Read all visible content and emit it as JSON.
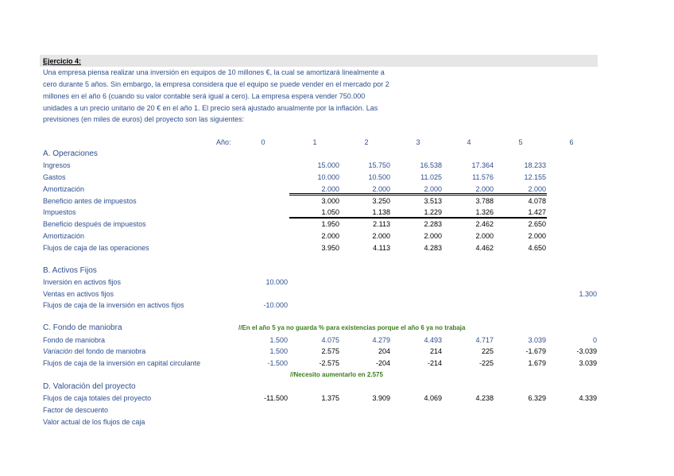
{
  "title": "Ejercicio 4:",
  "paragraph": [
    "Una empresa piensa realizar una inversión en equipos de 10 millones €, la cual se amortizará linealmente a",
    "cero durante 5 años. Sin embargo, la empresa considera que el equipo se puede vender en el mercado por 2",
    "millones en el año 6 (cuando su valor contable será igual a cero). La empresa espera vender 750.000",
    "unidades a un precio unitario de 20 € en el año 1. El precio será ajustado anualmente por la inflación. Las",
    "previsiones (en miles de euros) del proyecto son las siguientes:"
  ],
  "year_label": "Año:",
  "years": [
    "0",
    "1",
    "2",
    "3",
    "4",
    "5",
    "6"
  ],
  "sections": {
    "a": "A. Operaciones",
    "b": "B. Activos Fijos",
    "c": "C. Fondo de maniobra",
    "d": "D. Valoración del proyecto"
  },
  "notes": {
    "c": "//En el año 5 ya no guarda % para existencias porque el año 6 ya no trabaja",
    "necesito": "//Necesito aumentarlo en 2.575"
  },
  "rows": [
    {
      "label": "Ingresos",
      "values": [
        null,
        "15.000",
        "15.750",
        "16.538",
        "17.364",
        "18.233",
        null
      ]
    },
    {
      "label": "Gastos",
      "values": [
        null,
        "10.000",
        "10.500",
        "11.025",
        "11.576",
        "12.155",
        null
      ]
    },
    {
      "label": "Amortización",
      "values": [
        null,
        "2.000",
        "2.000",
        "2.000",
        "2.000",
        "2.000",
        null
      ]
    },
    {
      "label": "Beneficio antes de impuestos",
      "values": [
        null,
        "3.000",
        "3.250",
        "3.513",
        "3.788",
        "4.078",
        null
      ]
    },
    {
      "label": "Impuestos",
      "values": [
        null,
        "1.050",
        "1.138",
        "1.229",
        "1.326",
        "1.427",
        null
      ]
    },
    {
      "label": "Beneficio después de impuestos",
      "values": [
        null,
        "1.950",
        "2.113",
        "2.283",
        "2.462",
        "2.650",
        null
      ]
    },
    {
      "label": "Amortización",
      "values": [
        null,
        "2.000",
        "2.000",
        "2.000",
        "2.000",
        "2.000",
        null
      ]
    },
    {
      "label": "Flujos de caja de las operaciones",
      "values": [
        null,
        "3.950",
        "4.113",
        "4.283",
        "4.462",
        "4.650",
        null
      ]
    },
    {
      "label": "Inversión en activos fijos",
      "values": [
        "10.000",
        null,
        null,
        null,
        null,
        null,
        null
      ]
    },
    {
      "label": "Ventas en activos fijos",
      "values": [
        null,
        null,
        null,
        null,
        null,
        null,
        "1.300"
      ]
    },
    {
      "label": "Flujos de caja de la inversión en activos fijos",
      "values": [
        "-10.000",
        null,
        null,
        null,
        null,
        null,
        null
      ]
    },
    {
      "label": "Fondo de maniobra",
      "values": [
        "1.500",
        "4.075",
        "4.279",
        "4.493",
        "4.717",
        "3.039",
        "0"
      ]
    },
    {
      "label": "Variación",
      "label_suffix": " del fondo de maniobra",
      "values": [
        "1.500",
        "2.575",
        "204",
        "214",
        "225",
        "-1.679",
        "-3.039"
      ]
    },
    {
      "label": "Flujos de caja de la inversión en capital circulante",
      "values": [
        "-1.500",
        "-2.575",
        "-204",
        "-214",
        "-225",
        "1.679",
        "3.039"
      ]
    },
    {
      "label": "Flujos de caja totales del proyecto",
      "values": [
        "-11.500",
        "1.375",
        "3.909",
        "4.069",
        "4.238",
        "6.329",
        "4.339"
      ]
    },
    {
      "label": "Factor de descuento",
      "values": [
        null,
        null,
        null,
        null,
        null,
        null,
        null
      ]
    },
    {
      "label": "Valor actual de los flujos de caja",
      "values": [
        null,
        null,
        null,
        null,
        null,
        null,
        null
      ]
    }
  ]
}
